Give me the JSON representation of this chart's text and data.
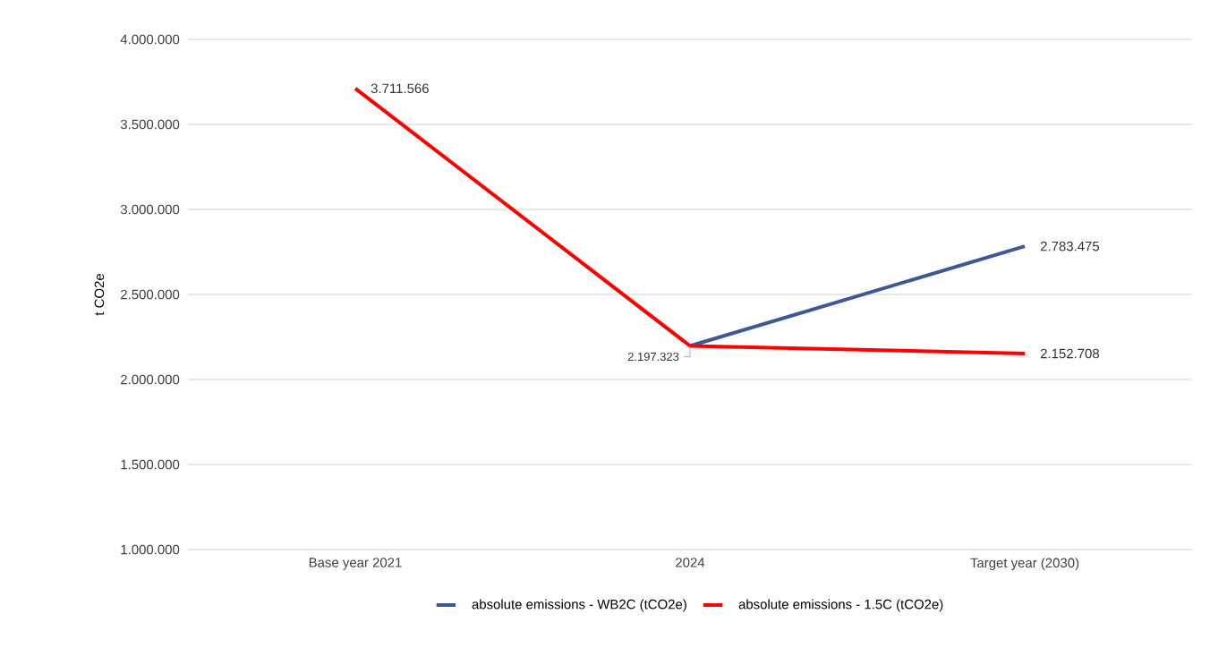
{
  "chart_data": {
    "type": "line",
    "ylabel": "t CO2e",
    "categories": [
      "Base year 2021",
      "2024",
      "Target year (2030)"
    ],
    "series": [
      {
        "name": "absolute emissions - WB2C (tCO2e)",
        "color": "#3e5895",
        "values": [
          null,
          2197323,
          2783475
        ],
        "value_labels": [
          null,
          "2.197.323",
          "2.783.475"
        ]
      },
      {
        "name": "absolute emissions - 1.5C (tCO2e)",
        "color": "#ff0000",
        "values": [
          3711566,
          2197323,
          2152708
        ],
        "value_labels": [
          "3.711.566",
          null,
          "2.152.708"
        ]
      }
    ],
    "ylim": [
      1000000,
      4000000
    ],
    "yticks": [
      {
        "value": 1000000,
        "label": "1.000.000"
      },
      {
        "value": 1500000,
        "label": "1.500.000"
      },
      {
        "value": 2000000,
        "label": "2.000.000"
      },
      {
        "value": 2500000,
        "label": "2.500.000"
      },
      {
        "value": 3000000,
        "label": "3.000.000"
      },
      {
        "value": 3500000,
        "label": "3.500.000"
      },
      {
        "value": 4000000,
        "label": "4.000.000"
      }
    ],
    "grid": "y",
    "legend": "bottom",
    "marker": "none",
    "line_style": "solid"
  }
}
